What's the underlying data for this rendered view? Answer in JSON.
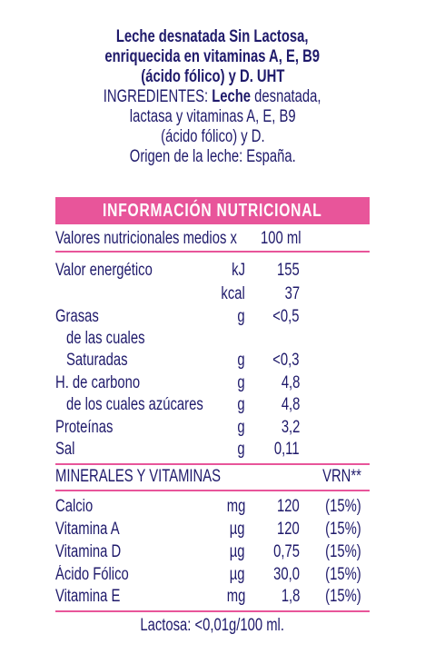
{
  "product": {
    "name_lines": [
      "Leche desnatada Sin Lactosa,",
      "enriquecida en vitaminas A, E, B9",
      "(ácido fólico) y D. UHT"
    ],
    "ingredients_label": "INGREDIENTES:",
    "ingredients_bold": "Leche",
    "ingredients_line1_rest": "desnatada,",
    "ingredients_lines": [
      "lactasa y vitaminas A, E, B9",
      "(ácido fólico) y D."
    ],
    "origin": "Origen de la leche: España."
  },
  "nutrition": {
    "banner": "INFORMACIÓN NUTRICIONAL",
    "header_label": "Valores nutricionales medios x",
    "header_value": "100 ml",
    "rows": [
      {
        "label": "Valor energético",
        "unit": "kJ",
        "value": "155"
      },
      {
        "label": "",
        "unit": "kcal",
        "value": "37"
      },
      {
        "label": "Grasas",
        "unit": "g",
        "value": "<0,5"
      },
      {
        "label": "de las cuales",
        "unit": "",
        "value": ""
      },
      {
        "label": "Saturadas",
        "unit": "g",
        "value": "<0,3"
      },
      {
        "label": "H. de carbono",
        "unit": "g",
        "value": "4,8"
      },
      {
        "label": "de los cuales azúcares",
        "unit": "g",
        "value": "4,8"
      },
      {
        "label": "Proteínas",
        "unit": "g",
        "value": "3,2"
      },
      {
        "label": "Sal",
        "unit": "g",
        "value": "0,11"
      }
    ]
  },
  "minerals": {
    "header_label": "MINERALES Y VITAMINAS",
    "header_vrn": "VRN**",
    "rows": [
      {
        "label": "Calcio",
        "unit": "mg",
        "value": "120",
        "vrn": "(15%)"
      },
      {
        "label": "Vitamina A",
        "unit": "µg",
        "value": "120",
        "vrn": "(15%)"
      },
      {
        "label": "Vitamina D",
        "unit": "µg",
        "value": "0,75",
        "vrn": "(15%)"
      },
      {
        "label": "Ácido Fólico",
        "unit": "µg",
        "value": "30,0",
        "vrn": "(15%)"
      },
      {
        "label": "Vitamina E",
        "unit": "mg",
        "value": "1,8",
        "vrn": "(15%)"
      }
    ]
  },
  "footer": "Lactosa: <0,01g/100 ml.",
  "colors": {
    "text": "#1f1a6b",
    "accent": "#e8559a"
  }
}
